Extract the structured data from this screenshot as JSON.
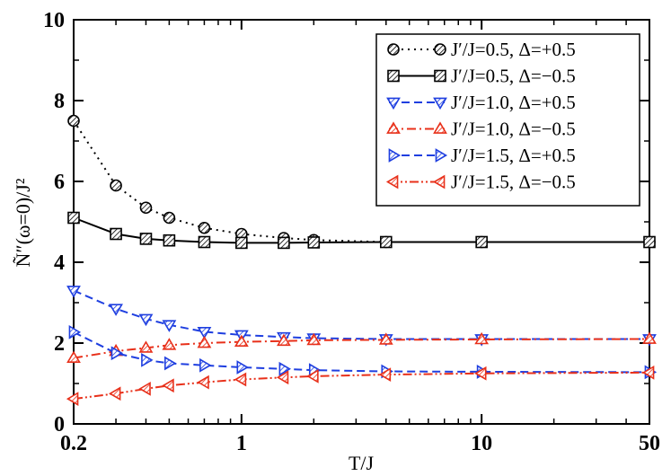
{
  "chart_data": {
    "type": "line",
    "xscale": "log",
    "xlim": [
      0.2,
      50
    ],
    "ylim": [
      0,
      10
    ],
    "xlabel": "T/J",
    "ylabel": "Ñ″(ω=0)/J²",
    "xticks": [
      0.2,
      1,
      10,
      50
    ],
    "xtick_labels": [
      "0.2",
      "1",
      "10",
      "50"
    ],
    "yticks": [
      0,
      2,
      4,
      6,
      8,
      10
    ],
    "ytick_labels": [
      "0",
      "2",
      "4",
      "6",
      "8",
      "10"
    ],
    "legend_position": "top-right",
    "series": [
      {
        "name": "J′/J=0.5, Δ=+0.5",
        "color": "#000000",
        "dash": "dotted",
        "marker": "circle",
        "x": [
          0.2,
          0.3,
          0.4,
          0.5,
          0.7,
          1.0,
          1.5,
          2.0,
          4.0,
          10.0,
          50.0
        ],
        "y": [
          7.5,
          5.9,
          5.35,
          5.1,
          4.85,
          4.7,
          4.6,
          4.55,
          4.5,
          4.5,
          4.5
        ]
      },
      {
        "name": "J′/J=0.5, Δ=−0.5",
        "color": "#000000",
        "dash": "solid",
        "marker": "square",
        "x": [
          0.2,
          0.3,
          0.4,
          0.5,
          0.7,
          1.0,
          1.5,
          2.0,
          4.0,
          10.0,
          50.0
        ],
        "y": [
          5.1,
          4.7,
          4.58,
          4.54,
          4.5,
          4.48,
          4.48,
          4.49,
          4.5,
          4.5,
          4.5
        ]
      },
      {
        "name": "J′/J=1.0, Δ=+0.5",
        "color": "#1f3fe0",
        "dash": "dashed",
        "marker": "triangle-down",
        "x": [
          0.2,
          0.3,
          0.4,
          0.5,
          0.7,
          1.0,
          1.5,
          2.0,
          4.0,
          10.0,
          50.0
        ],
        "y": [
          3.3,
          2.85,
          2.6,
          2.45,
          2.28,
          2.2,
          2.15,
          2.12,
          2.1,
          2.1,
          2.1
        ]
      },
      {
        "name": "J′/J=1.0, Δ=−0.5",
        "color": "#e8301a",
        "dash": "dashdot",
        "marker": "triangle-up",
        "x": [
          0.2,
          0.3,
          0.4,
          0.5,
          0.7,
          1.0,
          1.5,
          2.0,
          4.0,
          10.0,
          50.0
        ],
        "y": [
          1.63,
          1.8,
          1.88,
          1.95,
          2.0,
          2.03,
          2.05,
          2.07,
          2.08,
          2.09,
          2.1
        ]
      },
      {
        "name": "J′/J=1.5, Δ=+0.5",
        "color": "#1f3fe0",
        "dash": "dashed",
        "marker": "triangle-right",
        "x": [
          0.2,
          0.3,
          0.4,
          0.5,
          0.7,
          1.0,
          1.5,
          2.0,
          4.0,
          10.0,
          50.0
        ],
        "y": [
          2.27,
          1.75,
          1.58,
          1.5,
          1.45,
          1.4,
          1.36,
          1.33,
          1.3,
          1.29,
          1.28
        ]
      },
      {
        "name": "J′/J=1.5, Δ=−0.5",
        "color": "#e8301a",
        "dash": "dashdotdot",
        "marker": "triangle-left",
        "x": [
          0.2,
          0.3,
          0.4,
          0.5,
          0.7,
          1.0,
          1.5,
          2.0,
          4.0,
          10.0,
          50.0
        ],
        "y": [
          0.62,
          0.75,
          0.87,
          0.95,
          1.03,
          1.1,
          1.15,
          1.18,
          1.22,
          1.25,
          1.27
        ]
      }
    ]
  }
}
